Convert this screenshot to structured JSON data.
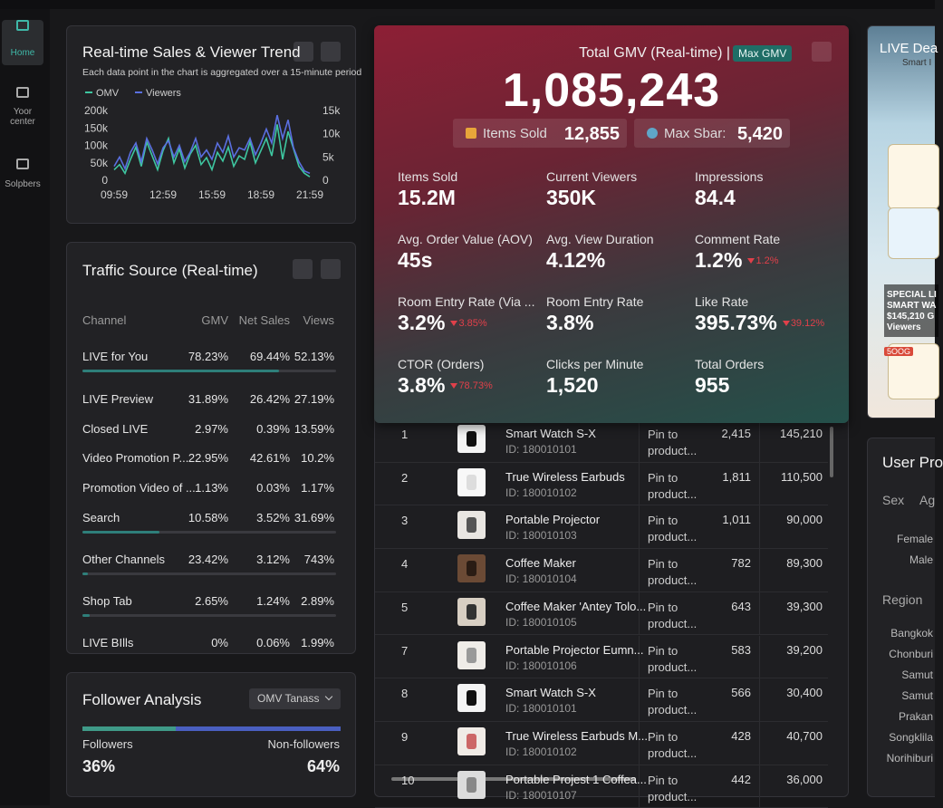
{
  "sidebar": {
    "items": [
      "Home",
      "Yoor center",
      "Solpbers"
    ]
  },
  "trend": {
    "title": "Real-time Sales & Viewer Trend",
    "subtitle": "Each data point in the chart is aggregated over a 15-minute period",
    "chart": {
      "type": "line",
      "categories": [
        "09:59",
        null,
        null,
        null,
        null,
        null,
        null,
        null,
        null,
        "12:59",
        null,
        null,
        null,
        null,
        null,
        null,
        null,
        null,
        "15:59",
        null,
        null,
        null,
        null,
        null,
        null,
        null,
        null,
        "18:59",
        null,
        null,
        null,
        null,
        null,
        null,
        null,
        null,
        "21:59"
      ],
      "ylim": [
        0,
        200000
      ],
      "yticks": [
        {
          "value": 200000,
          "label": "200k"
        },
        {
          "value": 150000,
          "label": "150k"
        },
        {
          "value": 100000,
          "label": "100k"
        },
        {
          "value": 50000,
          "label": "50k"
        },
        0
      ],
      "y2lim": [
        0,
        15000
      ],
      "y2ticks": [
        {
          "value": 15000,
          "label": "15k"
        },
        {
          "value": 10000,
          "label": "10k"
        },
        {
          "value": 5000,
          "label": "5k"
        },
        0
      ],
      "series": [
        {
          "name": "OMV",
          "color": "#3ec6a0",
          "values": [
            30000,
            45000,
            20000,
            60000,
            95000,
            40000,
            110000,
            70000,
            30000,
            85000,
            120000,
            50000,
            90000,
            35000,
            75000,
            100000,
            45000,
            65000,
            30000,
            80000,
            55000,
            95000,
            40000,
            70000,
            60000,
            110000,
            50000,
            85000,
            120000,
            70000,
            160000,
            60000,
            140000,
            90000,
            40000,
            20000,
            10000
          ]
        },
        {
          "name": "Viewers",
          "color": "#5a6fe0",
          "axis": "y2",
          "values": [
            3000,
            5000,
            2500,
            6000,
            8000,
            4000,
            9000,
            6500,
            3500,
            7000,
            8500,
            5000,
            7500,
            4000,
            6000,
            9000,
            5000,
            6500,
            4500,
            8000,
            6000,
            9500,
            5000,
            7000,
            6500,
            9000,
            5500,
            8000,
            11000,
            8000,
            14000,
            9000,
            13000,
            7000,
            4000,
            2000,
            1500
          ]
        }
      ]
    }
  },
  "traffic": {
    "title": "Traffic Source (Real-time)",
    "columns": [
      "Channel",
      "GMV",
      "Net Sales",
      "Views"
    ],
    "rows": [
      [
        "LIVE for You",
        "78.23%",
        "69.44%",
        "52.13%"
      ],
      [
        "LIVE Preview",
        "31.89%",
        "26.42%",
        "27.19%"
      ],
      [
        "Closed LIVE",
        "2.97%",
        "0.39%",
        "13.59%"
      ],
      [
        "Video Promotion P...",
        "22.95%",
        "42.61%",
        "10.2%"
      ],
      [
        "Promotion Video of ...",
        "1.13%",
        "0.03%",
        "1.17%"
      ],
      [
        "Search",
        "10.58%",
        "3.52%",
        "31.69%"
      ],
      [
        "Other Channels",
        "23.42%",
        "3.12%",
        "743%"
      ],
      [
        "Shop Tab",
        "2.65%",
        "1.24%",
        "2.89%"
      ],
      [
        "LIVE BIlls",
        "0%",
        "0.06%",
        "1.99%"
      ]
    ]
  },
  "follower": {
    "title": "Follower Analysis",
    "dropdown": "OMV Tanass",
    "segments": [
      {
        "label": "Followers",
        "value": 36,
        "value_label": "36%",
        "color": "#3f9a88"
      },
      {
        "label": "Non-followers",
        "value": 64,
        "value_label": "64%",
        "color": "#4a5fc0"
      }
    ]
  },
  "gmv": {
    "title": "Total GMV (Real-time) |",
    "badge": "Max GMV",
    "value": "1,085,243",
    "chips": [
      {
        "label": "Items Sold",
        "value": "12,855"
      },
      {
        "label": "Max Sbar:",
        "value": "5,420"
      }
    ],
    "metrics": [
      {
        "label": "Items Sold",
        "value": "15.2M"
      },
      {
        "label": "Current Viewers",
        "value": "350K"
      },
      {
        "label": "Impressions",
        "value": "84.4"
      },
      {
        "label": "Avg. Order Value (AOV)",
        "value": "45s"
      },
      {
        "label": "Avg. View Duration",
        "value": "4.12%"
      },
      {
        "label": "Comment Rate",
        "value": "1.2%",
        "delta": "1.2%"
      },
      {
        "label": "Room Entry Rate (Via ...",
        "value": "3.2%",
        "delta": "3.85%"
      },
      {
        "label": "Room Entry Rate",
        "value": "3.8%"
      },
      {
        "label": "Like Rate",
        "value": "395.73%",
        "delta": "39.12%"
      },
      {
        "label": "CTOR (Orders)",
        "value": "3.8%",
        "delta": "78.73%"
      },
      {
        "label": "Clicks per Minute",
        "value": "1,520"
      },
      {
        "label": "Total Orders",
        "value": "955"
      }
    ]
  },
  "products": {
    "rows": [
      {
        "rank": "1",
        "name": "Smart Watch S-X",
        "id": "ID: 180010101",
        "action": "Pin to product...",
        "units": "2,415",
        "gmv": "145,210"
      },
      {
        "rank": "2",
        "name": "True Wireless Earbuds",
        "id": "ID: 180010102",
        "action": "Pin to product...",
        "units": "1,811",
        "gmv": "110,500"
      },
      {
        "rank": "3",
        "name": "Portable Projector",
        "id": "ID: 180010103",
        "action": "Pin to product...",
        "units": "1,011",
        "gmv": "90,000"
      },
      {
        "rank": "4",
        "name": "Coffee Maker",
        "id": "ID: 180010104",
        "action": "Pin to product...",
        "units": "782",
        "gmv": "89,300"
      },
      {
        "rank": "5",
        "name": "Coffee Maker 'Antey Tolo...",
        "id": "ID: 180010105",
        "action": "Pin to product...",
        "units": "643",
        "gmv": "39,300"
      },
      {
        "rank": "7",
        "name": "Portable Projector Eumn...",
        "id": "ID: 180010106",
        "action": "Pin to product...",
        "units": "583",
        "gmv": "39,200"
      },
      {
        "rank": "8",
        "name": "Smart Watch S-X",
        "id": "ID: 180010101",
        "action": "Pin to product...",
        "units": "566",
        "gmv": "30,400"
      },
      {
        "rank": "9",
        "name": "True Wireless Earbuds M...",
        "id": "ID: 180010102",
        "action": "Pin to product...",
        "units": "428",
        "gmv": "40,700"
      },
      {
        "rank": "10",
        "name": "Portable Projest 1 Coffea...",
        "id": "ID: 180010107",
        "action": "Pin to product...",
        "units": "442",
        "gmv": "36,000"
      }
    ]
  },
  "live_deal": {
    "title": "LIVE Dea",
    "subtitle": "Smart I",
    "overlay": [
      "SPECIAL LI",
      "SMART WA",
      "$145,210 G",
      "Viewers"
    ],
    "tag": "5OOG"
  },
  "user_profile": {
    "title": "User Pro",
    "tabs": [
      "Sex",
      "Ag"
    ],
    "sex": [
      "Female",
      "Male"
    ],
    "region_title": "Region",
    "regions": [
      "Bangkok",
      "Chonburi",
      "Samut",
      "Samut",
      "Prakan",
      "Songklila",
      "Norihiburi"
    ]
  }
}
